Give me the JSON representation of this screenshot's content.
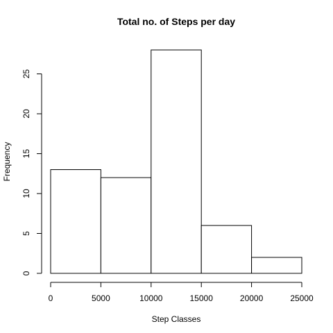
{
  "chart_data": {
    "type": "bar",
    "title": "Total no. of Steps per day",
    "xlabel": "Step Classes",
    "ylabel": "Frequency",
    "bins": [
      [
        0,
        5000
      ],
      [
        5000,
        10000
      ],
      [
        10000,
        15000
      ],
      [
        15000,
        20000
      ],
      [
        20000,
        25000
      ]
    ],
    "values": [
      13,
      12,
      28,
      6,
      2
    ],
    "xlim": [
      0,
      25000
    ],
    "ylim": [
      0,
      28
    ],
    "x_ticks": [
      0,
      5000,
      10000,
      15000,
      20000,
      25000
    ],
    "x_tick_labels": [
      "0",
      "5000",
      "10000",
      "15000",
      "20000",
      "25000"
    ],
    "y_ticks": [
      0,
      5,
      10,
      15,
      20,
      25
    ],
    "y_tick_labels": [
      "0",
      "5",
      "10",
      "15",
      "20",
      "25"
    ],
    "grid": false,
    "legend": "none",
    "colors": {
      "bar_fill": "#ffffff",
      "bar_stroke": "#000000"
    }
  }
}
